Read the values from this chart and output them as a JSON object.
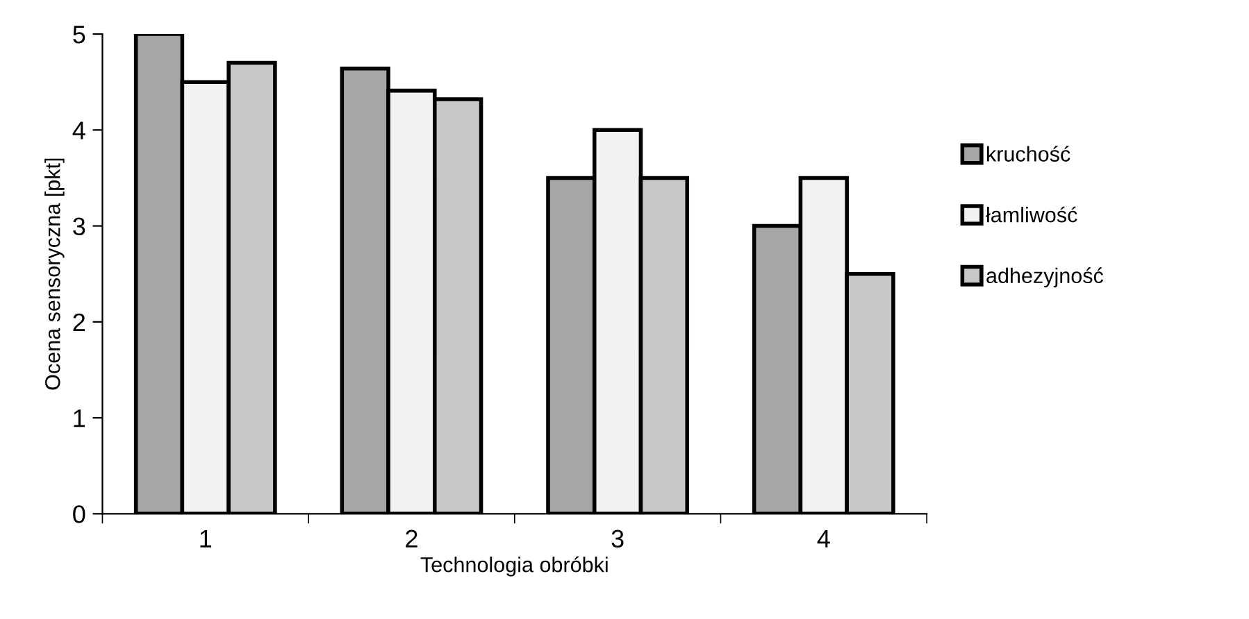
{
  "chart_data": {
    "type": "bar",
    "xlabel": "Technologia obróbki",
    "ylabel": "Ocena sensoryczna [pkt]",
    "categories": [
      "1",
      "2",
      "3",
      "4"
    ],
    "series": [
      {
        "name": "kruchość",
        "color": "#a6a6a6",
        "values": [
          5.0,
          4.64,
          3.5,
          3.0
        ]
      },
      {
        "name": "łamliwość",
        "color": "#f2f2f2",
        "values": [
          4.5,
          4.41,
          4.0,
          3.5
        ]
      },
      {
        "name": "adhezyjność",
        "color": "#c8c8c8",
        "values": [
          4.7,
          4.32,
          3.5,
          2.5
        ]
      }
    ],
    "ylim": [
      0,
      5
    ],
    "yticks": [
      0,
      1,
      2,
      3,
      4,
      5
    ],
    "grid": false,
    "legend": "right"
  }
}
